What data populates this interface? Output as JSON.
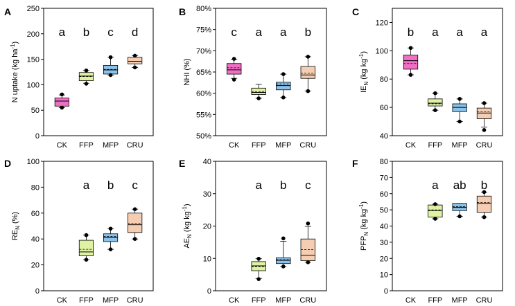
{
  "chart_data": [
    {
      "type": "box",
      "panel": "A",
      "ylabel": "N uptake (kg ha",
      "ylabel_sup": "-1",
      "ylabel_suffix": ")",
      "ylim": [
        0,
        250
      ],
      "yticks": [
        "0",
        "50",
        "100",
        "150",
        "200",
        "250"
      ],
      "yticks_values": [
        0,
        50,
        100,
        150,
        200,
        250
      ],
      "categories": [
        "CK",
        "FFP",
        "MFP",
        "CRU"
      ],
      "letters": [
        "a",
        "b",
        "c",
        "d"
      ],
      "boxes": [
        {
          "q1": 58,
          "median": 68,
          "mean": 68,
          "q3": 74,
          "lw": 55,
          "uw": 80,
          "out": [
            55,
            81
          ]
        },
        {
          "q1": 108,
          "median": 117,
          "mean": 116,
          "q3": 124,
          "lw": 103,
          "uw": 128,
          "out": [
            102,
            128
          ]
        },
        {
          "q1": 121,
          "median": 129,
          "mean": 130,
          "q3": 138,
          "lw": 119,
          "uw": 154,
          "out": [
            119,
            154
          ]
        },
        {
          "q1": 141,
          "median": 146,
          "mean": 146,
          "q3": 154,
          "lw": 134,
          "uw": 157,
          "out": [
            134,
            157
          ]
        }
      ]
    },
    {
      "type": "box",
      "panel": "B",
      "ylabel": "NHI (%)",
      "ylim": [
        50,
        80
      ],
      "yticks": [
        "50%",
        "55%",
        "60%",
        "65%",
        "70%",
        "75%",
        "80%"
      ],
      "yticks_values": [
        50,
        55,
        60,
        65,
        70,
        75,
        80
      ],
      "categories": [
        "CK",
        "FFP",
        "MFP",
        "CRU"
      ],
      "letters": [
        "c",
        "a",
        "a",
        "b"
      ],
      "boxes": [
        {
          "q1": 64.5,
          "median": 65.5,
          "mean": 66,
          "q3": 67,
          "lw": 63.5,
          "uw": 68.0,
          "out": [
            63.2,
            68.1
          ]
        },
        {
          "q1": 59.7,
          "median": 60.2,
          "mean": 60.4,
          "q3": 61.2,
          "lw": 58.8,
          "uw": 62.1,
          "out": [
            58.8
          ]
        },
        {
          "q1": 60.8,
          "median": 61.8,
          "mean": 62.2,
          "q3": 62.6,
          "lw": 59.0,
          "uw": 64.5,
          "out": [
            59.0,
            64.5
          ]
        },
        {
          "q1": 63.5,
          "median": 64.3,
          "mean": 64.7,
          "q3": 66.3,
          "lw": 60.5,
          "uw": 68.6,
          "out": [
            60.5,
            68.6
          ]
        }
      ]
    },
    {
      "type": "box",
      "panel": "C",
      "ylabel": "IE",
      "ylabel_sub": "N",
      "ylabel_rest": " (kg kg",
      "ylabel_sup": "-1",
      "ylabel_suffix": ")",
      "ylim": [
        40,
        130
      ],
      "yticks": [
        "40",
        "60",
        "80",
        "100",
        "120"
      ],
      "yticks_values": [
        40,
        60,
        80,
        100,
        120
      ],
      "categories": [
        "CK",
        "FFP",
        "MFP",
        "CRU"
      ],
      "letters": [
        "b",
        "a",
        "a",
        "a"
      ],
      "boxes": [
        {
          "q1": 87,
          "median": 93,
          "mean": 91,
          "q3": 97,
          "lw": 83,
          "uw": 102,
          "out": [
            83,
            102
          ]
        },
        {
          "q1": 61,
          "median": 63,
          "mean": 62.5,
          "q3": 66,
          "lw": 58,
          "uw": 70,
          "out": [
            58,
            70
          ]
        },
        {
          "q1": 57,
          "median": 60,
          "mean": 60,
          "q3": 62.5,
          "lw": 50,
          "uw": 66,
          "out": [
            50,
            66
          ]
        },
        {
          "q1": 52,
          "median": 56,
          "mean": 57,
          "q3": 59.5,
          "lw": 46,
          "uw": 63,
          "out": [
            44,
            63
          ]
        }
      ]
    },
    {
      "type": "box",
      "panel": "D",
      "ylabel": "RE",
      "ylabel_sub": "N",
      "ylabel_rest": " (%)",
      "ylim": [
        0,
        100
      ],
      "yticks": [
        "0",
        "20",
        "40",
        "60",
        "80",
        "100"
      ],
      "yticks_values": [
        0,
        20,
        40,
        60,
        80,
        100
      ],
      "categories": [
        "CK",
        "FFP",
        "MFP",
        "CRU"
      ],
      "letters": [
        "",
        "a",
        "b",
        "c"
      ],
      "boxes": [
        null,
        {
          "q1": 27,
          "median": 30,
          "mean": 32,
          "q3": 39,
          "lw": 24,
          "uw": 43,
          "out": [
            24,
            43
          ]
        },
        {
          "q1": 38,
          "median": 41,
          "mean": 42,
          "q3": 44,
          "lw": 32,
          "uw": 48,
          "out": [
            32,
            48
          ]
        },
        {
          "q1": 45,
          "median": 51,
          "mean": 52,
          "q3": 60,
          "lw": 40,
          "uw": 63,
          "out": [
            40,
            63
          ]
        }
      ]
    },
    {
      "type": "box",
      "panel": "E",
      "ylabel": "AE",
      "ylabel_sub": "N",
      "ylabel_rest": " (kg kg",
      "ylabel_sup": "-1",
      "ylabel_suffix": ")",
      "ylim": [
        0,
        40
      ],
      "yticks": [
        "0",
        "10",
        "20",
        "30",
        "40"
      ],
      "yticks_values": [
        0,
        10,
        20,
        30,
        40
      ],
      "categories": [
        "CK",
        "FFP",
        "MFP",
        "CRU"
      ],
      "letters": [
        "",
        "a",
        "b",
        "c"
      ],
      "boxes": [
        null,
        {
          "q1": 6.2,
          "median": 7.7,
          "mean": 7.5,
          "q3": 9.0,
          "lw": 3.8,
          "uw": 9.9,
          "out": [
            3.6,
            9.9
          ]
        },
        {
          "q1": 8.4,
          "median": 9.4,
          "mean": 9.6,
          "q3": 10.2,
          "lw": 7.5,
          "uw": 15.3,
          "out": [
            7.5,
            16.2
          ]
        },
        {
          "q1": 9.3,
          "median": 11.0,
          "mean": 12.7,
          "q3": 16.0,
          "lw": 8.8,
          "uw": 19.9,
          "out": [
            8.8,
            20.8
          ]
        }
      ]
    },
    {
      "type": "box",
      "panel": "F",
      "ylabel": "PFP",
      "ylabel_sub": "N",
      "ylabel_rest": " (kg kg",
      "ylabel_sup": "-1",
      "ylabel_suffix": ")",
      "ylim": [
        0,
        80
      ],
      "yticks": [
        "0",
        "10",
        "20",
        "30",
        "40",
        "50",
        "60",
        "70",
        "80"
      ],
      "yticks_values": [
        0,
        10,
        20,
        30,
        40,
        50,
        60,
        70,
        80
      ],
      "categories": [
        "CK",
        "FFP",
        "MFP",
        "CRU"
      ],
      "letters": [
        "",
        "a",
        "ab",
        "b"
      ],
      "boxes": [
        null,
        {
          "q1": 45.5,
          "median": 49.5,
          "mean": 50,
          "q3": 53.0,
          "lw": 44.5,
          "uw": 53.5,
          "out": [
            44.5,
            53.5
          ]
        },
        {
          "q1": 49.5,
          "median": 51.5,
          "mean": 52,
          "q3": 54.0,
          "lw": 46,
          "uw": 54,
          "out": [
            46
          ]
        },
        {
          "q1": 48.5,
          "median": 54,
          "mean": 54.5,
          "q3": 58.5,
          "lw": 45.5,
          "uw": 61,
          "out": [
            45.5,
            61
          ]
        }
      ]
    }
  ],
  "colors": {
    "CK": "#f06ec4",
    "FFP": "#dff2a4",
    "MFP": "#8ac2ea",
    "CRU": "#f5cdb2"
  }
}
